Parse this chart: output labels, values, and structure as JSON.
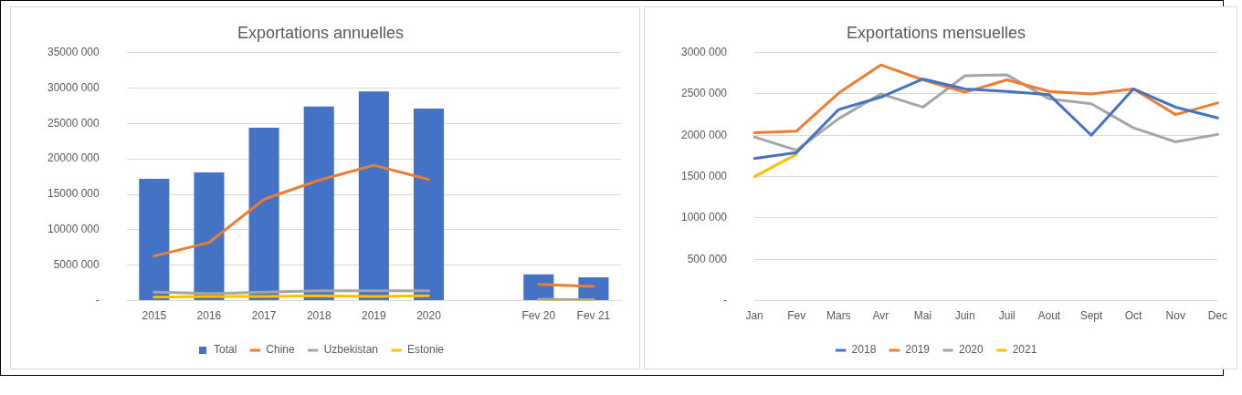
{
  "chart_data": [
    {
      "type": "bar",
      "title": "Exportations annuelles",
      "categories": [
        "2015",
        "2016",
        "2017",
        "2018",
        "2019",
        "2020",
        null,
        "Fev 20",
        "Fev 21"
      ],
      "series": [
        {
          "name": "Total",
          "type": "bar",
          "color": "#4472c4",
          "values": [
            17200000,
            18100000,
            24400000,
            27400000,
            29500000,
            27100000,
            null,
            3700000,
            3300000
          ]
        },
        {
          "name": "Chine",
          "type": "line",
          "color": "#ed7d31",
          "values": [
            6300000,
            8200000,
            14300000,
            17000000,
            19100000,
            17100000,
            null,
            2300000,
            2000000
          ]
        },
        {
          "name": "Uzbekistan",
          "type": "line",
          "color": "#a5a5a5",
          "values": [
            1200000,
            1000000,
            1200000,
            1400000,
            1400000,
            1400000,
            null,
            200000,
            100000
          ]
        },
        {
          "name": "Estonie",
          "type": "line",
          "color": "#ffc000",
          "values": [
            500000,
            600000,
            600000,
            700000,
            600000,
            700000,
            null,
            100000,
            100000
          ]
        }
      ],
      "ylim": [
        0,
        35000000
      ],
      "yticks": [
        {
          "value": 0,
          "label": "-"
        },
        {
          "value": 5000000,
          "label": "5000 000"
        },
        {
          "value": 10000000,
          "label": "10000 000"
        },
        {
          "value": 15000000,
          "label": "15000 000"
        },
        {
          "value": 20000000,
          "label": "20000 000"
        },
        {
          "value": 25000000,
          "label": "25000 000"
        },
        {
          "value": 30000000,
          "label": "30000 000"
        },
        {
          "value": 35000000,
          "label": "35000 000"
        }
      ],
      "grid": "y",
      "legend": "bottom",
      "marker": "none"
    },
    {
      "type": "line",
      "title": "Exportations mensuelles",
      "categories": [
        "Jan",
        "Fev",
        "Mars",
        "Avr",
        "Mai",
        "Juin",
        "Juil",
        "Aout",
        "Sept",
        "Oct",
        "Nov",
        "Dec"
      ],
      "series": [
        {
          "name": "2018",
          "color": "#4472c4",
          "values": [
            1720000,
            1790000,
            2310000,
            2460000,
            2680000,
            2560000,
            2530000,
            2490000,
            2000000,
            2560000,
            2340000,
            2210000
          ]
        },
        {
          "name": "2019",
          "color": "#ed7d31",
          "values": [
            2030000,
            2050000,
            2510000,
            2850000,
            2670000,
            2520000,
            2670000,
            2530000,
            2500000,
            2560000,
            2250000,
            2390000
          ]
        },
        {
          "name": "2020",
          "color": "#a5a5a5",
          "values": [
            1980000,
            1820000,
            2200000,
            2500000,
            2340000,
            2720000,
            2730000,
            2440000,
            2380000,
            2090000,
            1920000,
            2010000
          ]
        },
        {
          "name": "2021",
          "color": "#ffc000",
          "values": [
            1500000,
            1770000,
            null,
            null,
            null,
            null,
            null,
            null,
            null,
            null,
            null,
            null
          ]
        }
      ],
      "ylim": [
        0,
        3000000
      ],
      "yticks": [
        {
          "value": 0,
          "label": "-"
        },
        {
          "value": 500000,
          "label": "500 000"
        },
        {
          "value": 1000000,
          "label": "1000 000"
        },
        {
          "value": 1500000,
          "label": "1500 000"
        },
        {
          "value": 2000000,
          "label": "2000 000"
        },
        {
          "value": 2500000,
          "label": "2500 000"
        },
        {
          "value": 3000000,
          "label": "3000 000"
        }
      ],
      "grid": "y",
      "legend": "bottom",
      "marker": "none"
    }
  ]
}
